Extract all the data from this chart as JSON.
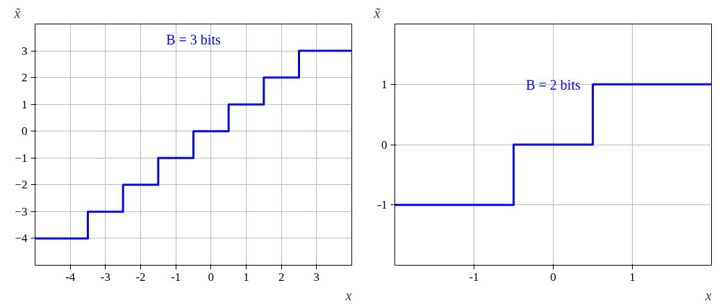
{
  "chart_data": [
    {
      "type": "step",
      "xlabel": "x",
      "ylabel": "x̃",
      "x": [
        -5,
        -3.5,
        -2.5,
        -1.5,
        -0.5,
        0.5,
        1.5,
        2.5,
        4
      ],
      "series": [
        {
          "color": "#0000ff",
          "values": [
            -4,
            -3,
            -2,
            -1,
            0,
            1,
            2,
            3,
            3
          ]
        }
      ],
      "xlim": [
        -5,
        4
      ],
      "ylim": [
        -5,
        4
      ],
      "xticks": [
        -4,
        -3,
        -2,
        -1,
        0,
        1,
        2,
        3
      ],
      "yticks": [
        {
          "value": -4,
          "label": "−4"
        },
        {
          "value": -3,
          "label": "−3"
        },
        {
          "value": -2,
          "label": "−2"
        },
        {
          "value": -1,
          "label": "−1"
        },
        0,
        1,
        2,
        3
      ],
      "grid": true,
      "annotations": [
        "B = 3 bits"
      ]
    },
    {
      "type": "step",
      "xlabel": "x",
      "ylabel": "x̃",
      "x": [
        -2,
        -0.5,
        0.5,
        2
      ],
      "series": [
        {
          "color": "#0000ff",
          "values": [
            -1,
            0,
            1,
            1
          ]
        }
      ],
      "xlim": [
        -2,
        2
      ],
      "ylim": [
        -2,
        2
      ],
      "xticks": [
        -1,
        0,
        1
      ],
      "yticks": [
        -1,
        0,
        1
      ],
      "grid": true,
      "annotations": [
        "B = 2 bits"
      ]
    }
  ]
}
